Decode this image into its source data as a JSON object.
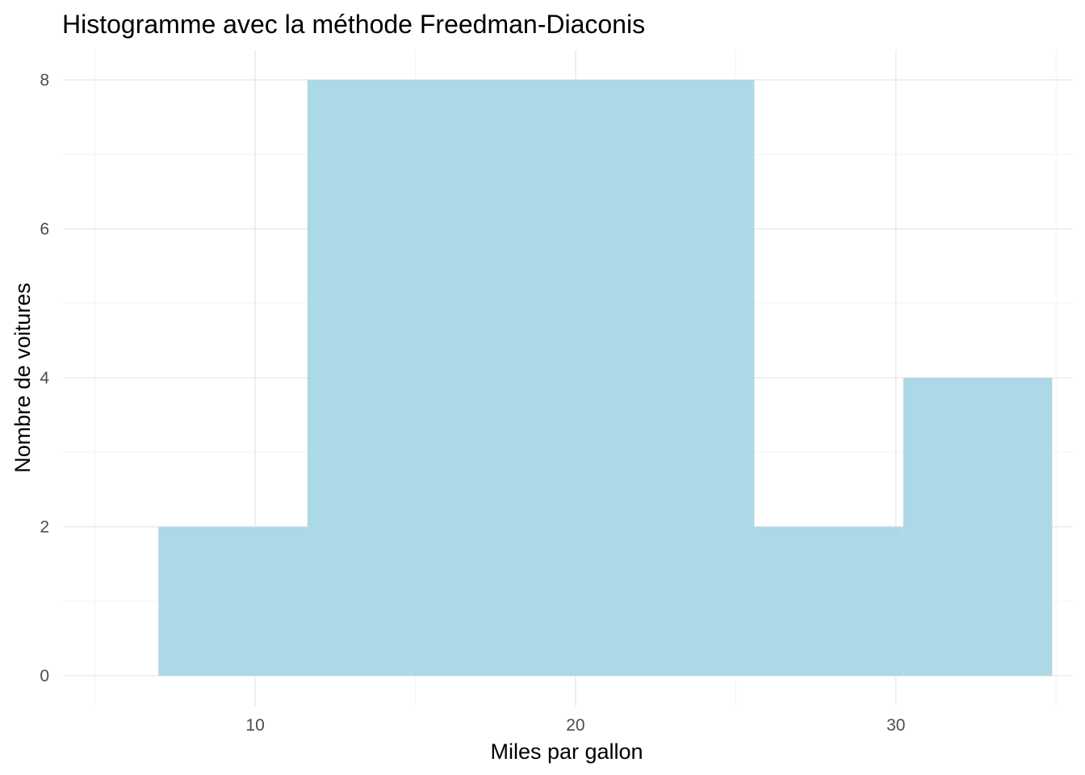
{
  "chart_data": {
    "type": "bar",
    "title": "Histogramme avec la méthode Freedman-Diaconis",
    "xlabel": "Miles par gallon",
    "ylabel": "Nombre de voitures",
    "bins": [
      {
        "x0": 6.98,
        "x1": 11.63,
        "count": 2
      },
      {
        "x0": 11.63,
        "x1": 25.58,
        "count": 8
      },
      {
        "x0": 25.58,
        "x1": 30.23,
        "count": 2
      },
      {
        "x0": 30.23,
        "x1": 34.88,
        "count": 4
      }
    ],
    "x_ticks": [
      10,
      20,
      30
    ],
    "x_tick_labels": [
      "10",
      "20",
      "30"
    ],
    "y_ticks": [
      0,
      2,
      4,
      6,
      8
    ],
    "y_tick_labels": [
      "0",
      "2",
      "4",
      "6",
      "8"
    ],
    "xlim": [
      4,
      35.5
    ],
    "ylim": [
      -0.4,
      8.4
    ],
    "grid": true,
    "legend": "none",
    "bar_color": "#ADD8E6"
  }
}
